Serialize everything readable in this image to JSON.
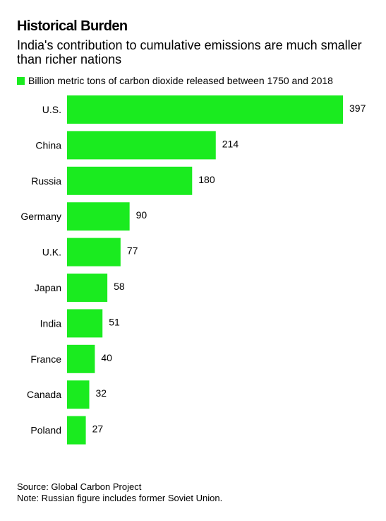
{
  "header": {
    "title": "Historical Burden",
    "subtitle": "India's contribution to cumulative emissions are much smaller than richer nations",
    "legend_label": "Billion metric tons of carbon dioxide released between 1750 and 2018"
  },
  "footer": {
    "source": "Source: Global Carbon Project",
    "note": "Note: Russian figure includes former Soviet Union."
  },
  "colors": {
    "bar": "#1aeb1f"
  },
  "chart_data": {
    "type": "bar",
    "orientation": "horizontal",
    "categories": [
      "U.S.",
      "China",
      "Russia",
      "Germany",
      "U.K.",
      "Japan",
      "India",
      "France",
      "Canada",
      "Poland"
    ],
    "values": [
      397,
      214,
      180,
      90,
      77,
      58,
      51,
      40,
      32,
      27
    ],
    "value_labels": [
      "397",
      "214",
      "180",
      "90",
      "77",
      "58",
      "51",
      "40",
      "32",
      "27"
    ],
    "xlim": [
      0,
      397
    ],
    "grid": false,
    "legend_position": "top-left"
  }
}
